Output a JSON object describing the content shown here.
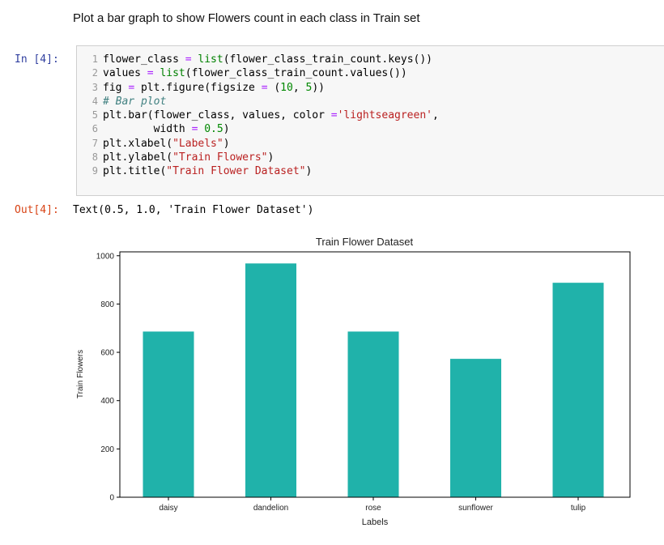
{
  "markdown": {
    "text": "Plot a bar graph to show Flowers count in each class in Train set"
  },
  "cell_in": {
    "prompt": "In [4]:",
    "line_numbers": [
      "1",
      "2",
      "3",
      "4",
      "5",
      "6",
      "7",
      "8",
      "9"
    ]
  },
  "cell_out": {
    "prompt": "Out[4]:",
    "text": "Text(0.5, 1.0, 'Train Flower Dataset')"
  },
  "colors": {
    "bar": "#20b2aa",
    "in_prompt": "#303f9f",
    "out_prompt": "#d84315"
  },
  "chart_data": {
    "type": "bar",
    "title": "Train Flower Dataset",
    "xlabel": "Labels",
    "ylabel": "Train Flowers",
    "categories": [
      "daisy",
      "dandelion",
      "rose",
      "sunflower",
      "tulip"
    ],
    "values": [
      686,
      968,
      686,
      573,
      888
    ],
    "ylim": [
      0,
      1016
    ],
    "yticks": [
      0,
      200,
      400,
      600,
      800,
      1000
    ],
    "grid": false,
    "legend": "none"
  }
}
